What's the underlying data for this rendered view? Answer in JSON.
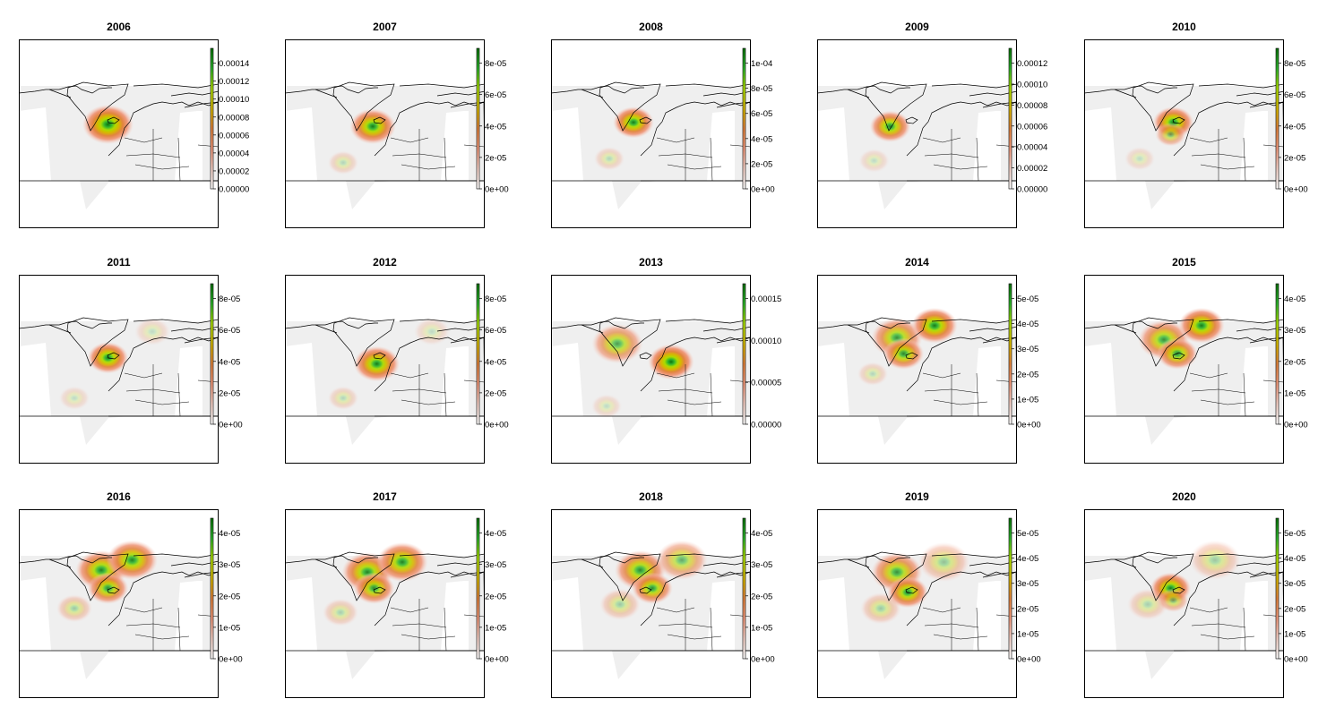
{
  "colors": {
    "land_background": "#efefef",
    "coastline": "#000000",
    "ramp": [
      "#ffffff",
      "#f6d2c8",
      "#ef9a7e",
      "#e2843f",
      "#d6b800",
      "#aadc00",
      "#2fb52f",
      "#0d730d"
    ]
  },
  "panels": [
    {
      "title": "2006",
      "ticks": [
        "0.00000",
        "0.00002",
        "0.00004",
        "0.00006",
        "0.00008",
        "0.00010",
        "0.00012",
        "0.00014"
      ],
      "hotspots": [
        {
          "lon": -3,
          "lat": 63,
          "intensity": 1.0,
          "spread": 1.0
        }
      ]
    },
    {
      "title": "2007",
      "ticks": [
        "0e+00",
        "2e-05",
        "4e-05",
        "6e-05",
        "8e-05"
      ],
      "hotspots": [
        {
          "lon": -4,
          "lat": 62,
          "intensity": 0.95,
          "spread": 0.9
        },
        {
          "lon": -26,
          "lat": 44,
          "intensity": 0.25,
          "spread": 0.6
        }
      ]
    },
    {
      "title": "2008",
      "ticks": [
        "0e+00",
        "2e-05",
        "4e-05",
        "6e-05",
        "8e-05",
        "1e-04"
      ],
      "hotspots": [
        {
          "lon": -8,
          "lat": 64,
          "intensity": 0.95,
          "spread": 0.8
        },
        {
          "lon": -26,
          "lat": 46,
          "intensity": 0.25,
          "spread": 0.6
        }
      ]
    },
    {
      "title": "2009",
      "ticks": [
        "0.00000",
        "0.00002",
        "0.00004",
        "0.00006",
        "0.00008",
        "0.00010",
        "0.00012"
      ],
      "hotspots": [
        {
          "lon": -15,
          "lat": 62,
          "intensity": 0.9,
          "spread": 0.8
        },
        {
          "lon": -27,
          "lat": 45,
          "intensity": 0.2,
          "spread": 0.6
        }
      ]
    },
    {
      "title": "2010",
      "ticks": [
        "0e+00",
        "2e-05",
        "4e-05",
        "6e-05",
        "8e-05"
      ],
      "hotspots": [
        {
          "lon": -3,
          "lat": 64,
          "intensity": 0.95,
          "spread": 0.8
        },
        {
          "lon": -5,
          "lat": 58,
          "intensity": 0.55,
          "spread": 0.6
        },
        {
          "lon": -28,
          "lat": 46,
          "intensity": 0.2,
          "spread": 0.6
        }
      ]
    },
    {
      "title": "2011",
      "ticks": [
        "0e+00",
        "2e-05",
        "4e-05",
        "6e-05",
        "8e-05"
      ],
      "hotspots": [
        {
          "lon": -3,
          "lat": 64,
          "intensity": 0.95,
          "spread": 0.8
        },
        {
          "lon": 30,
          "lat": 77,
          "intensity": 0.2,
          "spread": 0.7
        },
        {
          "lon": -28,
          "lat": 44,
          "intensity": 0.2,
          "spread": 0.6
        }
      ]
    },
    {
      "title": "2012",
      "ticks": [
        "0e+00",
        "2e-05",
        "4e-05",
        "6e-05",
        "8e-05"
      ],
      "hotspots": [
        {
          "lon": -1,
          "lat": 61,
          "intensity": 0.95,
          "spread": 0.9
        },
        {
          "lon": 40,
          "lat": 77,
          "intensity": 0.2,
          "spread": 0.7
        },
        {
          "lon": -26,
          "lat": 44,
          "intensity": 0.25,
          "spread": 0.6
        }
      ]
    },
    {
      "title": "2013",
      "ticks": [
        "0.00000",
        "0.00005",
        "0.00010",
        "0.00015"
      ],
      "hotspots": [
        {
          "lon": -20,
          "lat": 71,
          "intensity": 0.7,
          "spread": 1.0
        },
        {
          "lon": 20,
          "lat": 62,
          "intensity": 1.0,
          "spread": 0.9
        },
        {
          "lon": -28,
          "lat": 40,
          "intensity": 0.2,
          "spread": 0.6
        }
      ]
    },
    {
      "title": "2014",
      "ticks": [
        "0e+00",
        "1e-05",
        "2e-05",
        "3e-05",
        "4e-05",
        "5e-05"
      ],
      "hotspots": [
        {
          "lon": -10,
          "lat": 74,
          "intensity": 0.8,
          "spread": 1.0
        },
        {
          "lon": -5,
          "lat": 66,
          "intensity": 0.85,
          "spread": 0.8
        },
        {
          "lon": 18,
          "lat": 80,
          "intensity": 0.95,
          "spread": 0.9
        },
        {
          "lon": -28,
          "lat": 56,
          "intensity": 0.25,
          "spread": 0.6
        }
      ]
    },
    {
      "title": "2015",
      "ticks": [
        "0e+00",
        "1e-05",
        "2e-05",
        "3e-05",
        "4e-05"
      ],
      "hotspots": [
        {
          "lon": -10,
          "lat": 73,
          "intensity": 0.8,
          "spread": 1.0
        },
        {
          "lon": 0,
          "lat": 66,
          "intensity": 0.85,
          "spread": 0.8
        },
        {
          "lon": 18,
          "lat": 80,
          "intensity": 0.95,
          "spread": 0.9
        }
      ]
    },
    {
      "title": "2016",
      "ticks": [
        "0e+00",
        "1e-05",
        "2e-05",
        "3e-05",
        "4e-05"
      ],
      "hotspots": [
        {
          "lon": -8,
          "lat": 75,
          "intensity": 0.9,
          "spread": 1.0
        },
        {
          "lon": -3,
          "lat": 66,
          "intensity": 0.85,
          "spread": 0.8
        },
        {
          "lon": 15,
          "lat": 80,
          "intensity": 0.9,
          "spread": 1.0
        },
        {
          "lon": -28,
          "lat": 56,
          "intensity": 0.35,
          "spread": 0.7
        }
      ]
    },
    {
      "title": "2017",
      "ticks": [
        "0e+00",
        "1e-05",
        "2e-05",
        "3e-05",
        "4e-05"
      ],
      "hotspots": [
        {
          "lon": -8,
          "lat": 74,
          "intensity": 0.9,
          "spread": 1.0
        },
        {
          "lon": -3,
          "lat": 66,
          "intensity": 0.85,
          "spread": 0.8
        },
        {
          "lon": 18,
          "lat": 79,
          "intensity": 0.9,
          "spread": 1.0
        },
        {
          "lon": -28,
          "lat": 54,
          "intensity": 0.3,
          "spread": 0.7
        }
      ]
    },
    {
      "title": "2018",
      "ticks": [
        "0e+00",
        "1e-05",
        "2e-05",
        "3e-05",
        "4e-05"
      ],
      "hotspots": [
        {
          "lon": -3,
          "lat": 75,
          "intensity": 0.85,
          "spread": 1.0
        },
        {
          "lon": 6,
          "lat": 66,
          "intensity": 0.85,
          "spread": 0.8
        },
        {
          "lon": 28,
          "lat": 80,
          "intensity": 0.6,
          "spread": 1.0
        },
        {
          "lon": -18,
          "lat": 58,
          "intensity": 0.35,
          "spread": 0.8
        }
      ]
    },
    {
      "title": "2019",
      "ticks": [
        "0e+00",
        "1e-05",
        "2e-05",
        "3e-05",
        "4e-05",
        "5e-05"
      ],
      "hotspots": [
        {
          "lon": -10,
          "lat": 74,
          "intensity": 0.8,
          "spread": 1.0
        },
        {
          "lon": -2,
          "lat": 64,
          "intensity": 0.9,
          "spread": 0.8
        },
        {
          "lon": 25,
          "lat": 79,
          "intensity": 0.4,
          "spread": 1.0
        },
        {
          "lon": -22,
          "lat": 56,
          "intensity": 0.35,
          "spread": 0.8
        }
      ]
    },
    {
      "title": "2020",
      "ticks": [
        "0e+00",
        "1e-05",
        "2e-05",
        "3e-05",
        "4e-05",
        "5e-05"
      ],
      "hotspots": [
        {
          "lon": -5,
          "lat": 66,
          "intensity": 0.95,
          "spread": 0.8
        },
        {
          "lon": -3,
          "lat": 60,
          "intensity": 0.5,
          "spread": 0.6
        },
        {
          "lon": 28,
          "lat": 80,
          "intensity": 0.35,
          "spread": 1.0
        },
        {
          "lon": -22,
          "lat": 58,
          "intensity": 0.3,
          "spread": 0.8
        }
      ]
    }
  ]
}
